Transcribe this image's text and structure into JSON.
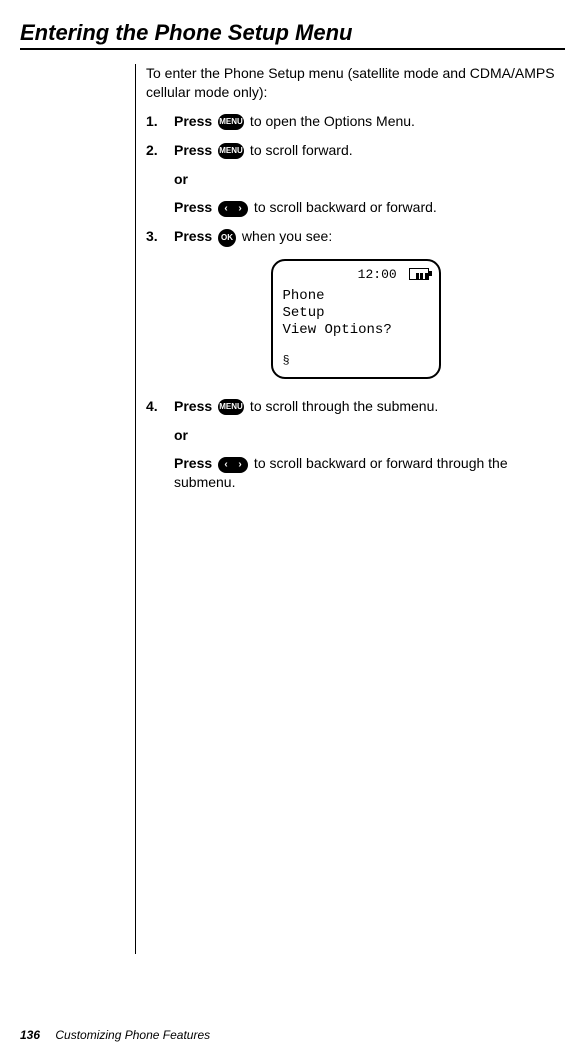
{
  "title": "Entering the Phone Setup Menu",
  "intro": "To enter the Phone Setup menu (satellite mode and CDMA/AMPS cellular mode only):",
  "buttons": {
    "menu": "MENU",
    "ok": "OK",
    "arrows": "‹ ›"
  },
  "steps": {
    "s1": {
      "num": "1.",
      "press": "Press",
      "tail": " to open the Options Menu.",
      "btn": "menu"
    },
    "s2": {
      "num": "2.",
      "press": "Press",
      "tail": " to scroll forward.",
      "btn": "menu"
    },
    "or1": "or",
    "s2b": {
      "press": "Press",
      "tail": " to scroll backward or forward.",
      "btn": "arrows"
    },
    "s3": {
      "num": "3.",
      "press": "Press",
      "tail": " when you see:",
      "btn": "ok"
    },
    "s4": {
      "num": "4.",
      "press": "Press",
      "tail": " to scroll through the submenu.",
      "btn": "menu"
    },
    "or2": "or",
    "s4b": {
      "press": "Press",
      "tail": " to scroll backward or forward through the submenu.",
      "btn": "arrows"
    }
  },
  "screen": {
    "time": "12:00",
    "line1": "Phone",
    "line2": "Setup",
    "line3": "View Options?",
    "signal": "§"
  },
  "footer": {
    "page": "136",
    "section": "Customizing Phone Features"
  }
}
